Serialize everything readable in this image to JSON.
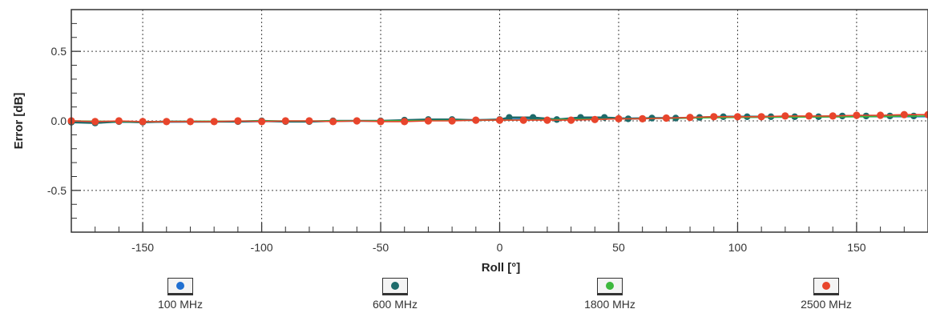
{
  "chart_data": {
    "type": "line",
    "title": "",
    "xlabel": "Roll [°]",
    "ylabel": "Error [dB]",
    "xlim": [
      -180,
      180
    ],
    "ylim": [
      -0.8,
      0.8
    ],
    "xticks": [
      -150,
      -100,
      -50,
      0,
      50,
      100,
      150
    ],
    "xtick_labels": [
      "-150",
      "-100",
      "-50",
      "0",
      "50",
      "100",
      "150"
    ],
    "yticks": [
      0.5,
      0.0,
      -0.5
    ],
    "ytick_labels": [
      "0.5",
      "0.0",
      "-0.5"
    ],
    "grid": true,
    "legend_position": "bottom",
    "series": [
      {
        "name": "100 MHz",
        "color": "#1f6fd1",
        "x": [
          -180,
          -150,
          -100,
          -50,
          0,
          50,
          100,
          150,
          180
        ],
        "y": [
          -0.01,
          -0.01,
          -0.005,
          0.0,
          0.01,
          0.02,
          0.025,
          0.03,
          0.03
        ]
      },
      {
        "name": "600 MHz",
        "color": "#1d6a6a",
        "x": [
          -180,
          -170,
          -160,
          -150,
          -140,
          -130,
          -120,
          -110,
          -100,
          -90,
          -80,
          -70,
          -60,
          -50,
          -40,
          -30,
          -20,
          -10,
          0,
          4,
          14,
          24,
          34,
          44,
          54,
          64,
          74,
          84,
          94,
          104,
          114,
          124,
          134,
          144,
          154,
          164,
          174
        ],
        "y": [
          -0.01,
          -0.015,
          -0.005,
          -0.01,
          -0.005,
          -0.005,
          -0.005,
          -0.005,
          0.0,
          -0.005,
          -0.005,
          0.0,
          0.0,
          0.0,
          0.005,
          0.01,
          0.01,
          0.005,
          0.01,
          0.025,
          0.025,
          0.01,
          0.025,
          0.025,
          0.015,
          0.02,
          0.02,
          0.025,
          0.03,
          0.03,
          0.03,
          0.03,
          0.03,
          0.035,
          0.035,
          0.035,
          0.035
        ]
      },
      {
        "name": "1800 MHz",
        "color": "#3cb83c",
        "x": [
          -180,
          -150,
          -100,
          -50,
          0,
          50,
          100,
          150,
          180
        ],
        "y": [
          0.0,
          -0.005,
          0.0,
          0.0,
          0.005,
          0.015,
          0.025,
          0.03,
          0.035
        ]
      },
      {
        "name": "2500 MHz",
        "color": "#e8452c",
        "x": [
          -180,
          -170,
          -160,
          -150,
          -140,
          -130,
          -120,
          -110,
          -100,
          -90,
          -80,
          -70,
          -60,
          -50,
          -40,
          -30,
          -20,
          -10,
          0,
          10,
          20,
          30,
          40,
          50,
          60,
          70,
          80,
          90,
          100,
          110,
          120,
          130,
          140,
          150,
          160,
          170,
          180
        ],
        "y": [
          0.0,
          -0.005,
          0.0,
          -0.005,
          -0.005,
          -0.005,
          -0.005,
          0.0,
          -0.005,
          0.0,
          0.0,
          -0.005,
          0.0,
          -0.005,
          -0.005,
          0.0,
          0.0,
          0.005,
          0.005,
          0.005,
          0.005,
          0.005,
          0.01,
          0.015,
          0.015,
          0.02,
          0.025,
          0.03,
          0.03,
          0.03,
          0.035,
          0.035,
          0.035,
          0.04,
          0.04,
          0.045,
          0.045
        ]
      }
    ]
  },
  "legend": [
    {
      "label": "100 MHz",
      "color": "#1f6fd1"
    },
    {
      "label": "600 MHz",
      "color": "#1d6a6a"
    },
    {
      "label": "1800 MHz",
      "color": "#3cb83c"
    },
    {
      "label": "2500 MHz",
      "color": "#e8452c"
    }
  ]
}
